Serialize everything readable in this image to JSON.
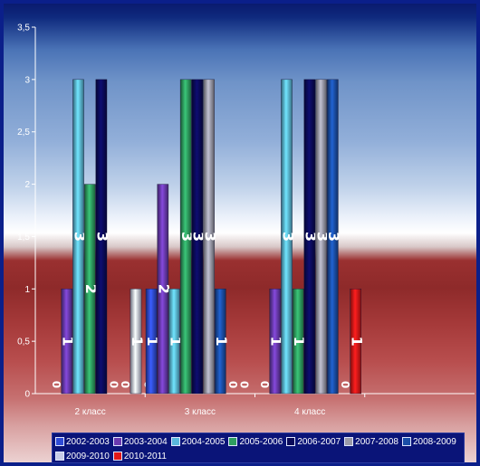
{
  "chart_data": {
    "type": "bar",
    "categories": [
      "2 класс",
      "3 класс",
      "4 класс"
    ],
    "series": [
      {
        "name": "2002-2003",
        "values": [
          0,
          1,
          0
        ],
        "color": "#2f4bd6"
      },
      {
        "name": "2003-2004",
        "values": [
          1,
          2,
          1
        ],
        "color": "#6a3ab0"
      },
      {
        "name": "2004-2005",
        "values": [
          3,
          1,
          3
        ],
        "color": "#5ab8dc"
      },
      {
        "name": "2005-2006",
        "values": [
          2,
          3,
          1
        ],
        "color": "#2e9e60"
      },
      {
        "name": "2006-2007",
        "values": [
          3,
          3,
          3
        ],
        "color": "#0a0a5a"
      },
      {
        "name": "2007-2008",
        "values": [
          0,
          3,
          3
        ],
        "color": "#9a9aa8"
      },
      {
        "name": "2008-2009",
        "values": [
          0,
          1,
          3
        ],
        "color": "#1a4fa8"
      },
      {
        "name": "2009-2010",
        "values": [
          1,
          0,
          0
        ],
        "color": "#c8cce8"
      },
      {
        "name": "2010-2011",
        "values": [
          0,
          0,
          1
        ],
        "color": "#e01818"
      }
    ],
    "y_ticks": [
      "0",
      "0,5",
      "1",
      "1,5",
      "2",
      "2,5",
      "3",
      "3,5"
    ],
    "ylim": [
      0,
      3.5
    ],
    "data_labels": true,
    "legend_position": "bottom",
    "grid": false
  }
}
